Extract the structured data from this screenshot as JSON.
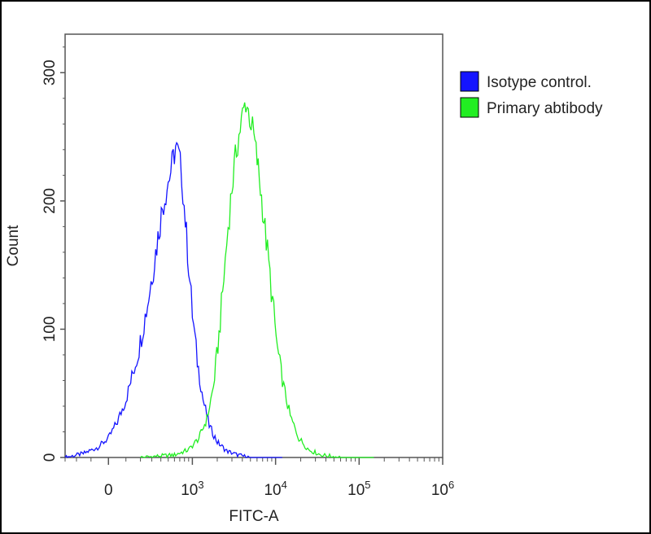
{
  "chart_data": {
    "type": "line",
    "title": "",
    "xlabel": "FITC-A",
    "ylabel": "Count",
    "x_scale": "logicle",
    "xlim": [
      -300,
      1000000
    ],
    "ylim": [
      0,
      330
    ],
    "x_ticks": [
      {
        "value": 0,
        "base": "0",
        "exp": ""
      },
      {
        "value": 1000,
        "base": "10",
        "exp": "3"
      },
      {
        "value": 10000,
        "base": "10",
        "exp": "4"
      },
      {
        "value": 100000,
        "base": "10",
        "exp": "5"
      },
      {
        "value": 1000000,
        "base": "10",
        "exp": "6"
      }
    ],
    "y_ticks": [
      0,
      100,
      200,
      300
    ],
    "legend": {
      "placement": "right-top"
    },
    "series": [
      {
        "name": "Isotype control.",
        "color": "#1414ff",
        "points": [
          [
            -300,
            0
          ],
          [
            -150,
            3
          ],
          [
            -60,
            8
          ],
          [
            0,
            15
          ],
          [
            50,
            28
          ],
          [
            100,
            45
          ],
          [
            180,
            80
          ],
          [
            260,
            120
          ],
          [
            340,
            160
          ],
          [
            420,
            195
          ],
          [
            500,
            215
          ],
          [
            560,
            228
          ],
          [
            620,
            242
          ],
          [
            680,
            235
          ],
          [
            740,
            220
          ],
          [
            820,
            185
          ],
          [
            900,
            150
          ],
          [
            1000,
            112
          ],
          [
            1150,
            75
          ],
          [
            1350,
            45
          ],
          [
            1600,
            25
          ],
          [
            2000,
            12
          ],
          [
            2600,
            5
          ],
          [
            3500,
            2
          ],
          [
            5000,
            0
          ],
          [
            12000,
            0
          ]
        ]
      },
      {
        "name": "Primary abtibody",
        "color": "#22ee22",
        "points": [
          [
            200,
            0
          ],
          [
            600,
            2
          ],
          [
            900,
            6
          ],
          [
            1200,
            15
          ],
          [
            1500,
            30
          ],
          [
            1800,
            55
          ],
          [
            2100,
            95
          ],
          [
            2400,
            140
          ],
          [
            2700,
            180
          ],
          [
            3000,
            210
          ],
          [
            3400,
            240
          ],
          [
            3900,
            262
          ],
          [
            4400,
            278
          ],
          [
            4900,
            266
          ],
          [
            5500,
            250
          ],
          [
            6200,
            225
          ],
          [
            7000,
            195
          ],
          [
            8000,
            160
          ],
          [
            9200,
            122
          ],
          [
            10500,
            85
          ],
          [
            12500,
            55
          ],
          [
            15000,
            32
          ],
          [
            19000,
            15
          ],
          [
            25000,
            6
          ],
          [
            35000,
            2
          ],
          [
            60000,
            0
          ],
          [
            150000,
            0
          ]
        ]
      }
    ]
  }
}
